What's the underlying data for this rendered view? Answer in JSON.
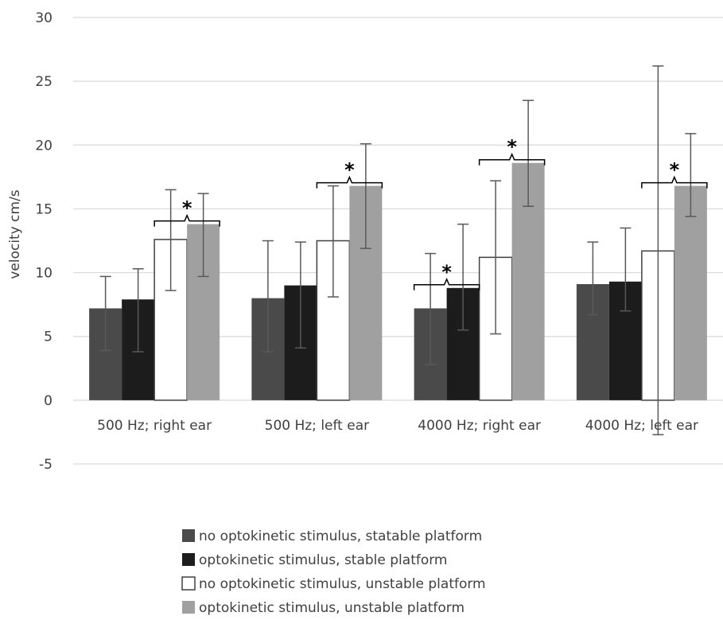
{
  "chart_data": {
    "type": "bar",
    "title": "",
    "xlabel": "",
    "ylabel": "velocity cm/s",
    "ylim": [
      -5,
      30
    ],
    "yticks": [
      -5,
      0,
      5,
      10,
      15,
      20,
      25,
      30
    ],
    "grid": true,
    "legend_position": "bottom",
    "categories": [
      "500 Hz; right ear",
      "500 Hz; left ear",
      "4000 Hz; right ear",
      "4000 Hz; left ear"
    ],
    "series": [
      {
        "name": "no optokinetic stimulus, statable platform",
        "color": "#4a4a4a",
        "values": [
          7.2,
          8.0,
          7.2,
          9.1
        ],
        "error_low": [
          3.9,
          3.8,
          2.8,
          6.7
        ],
        "error_high": [
          9.7,
          12.5,
          11.5,
          12.4
        ]
      },
      {
        "name": "optokinetic stimulus, stable platform",
        "color": "#1c1c1c",
        "values": [
          7.9,
          9.0,
          8.8,
          9.3
        ],
        "error_low": [
          3.8,
          4.1,
          5.5,
          7.0
        ],
        "error_high": [
          10.3,
          12.4,
          13.8,
          13.5
        ]
      },
      {
        "name": "no optokinetic stimulus, unstable platform",
        "color": "#ffffff",
        "values": [
          12.6,
          12.5,
          11.2,
          11.7
        ],
        "error_low": [
          8.6,
          8.1,
          5.2,
          -2.7
        ],
        "error_high": [
          16.5,
          16.8,
          17.2,
          26.2
        ]
      },
      {
        "name": "optokinetic stimulus, unstable platform",
        "color": "#a0a0a0",
        "values": [
          13.8,
          16.8,
          18.6,
          16.8
        ],
        "error_low": [
          9.7,
          11.9,
          15.2,
          14.4
        ],
        "error_high": [
          16.2,
          20.1,
          23.5,
          20.9
        ]
      }
    ],
    "annotations": [
      {
        "category": 0,
        "from_series": 2,
        "to_series": 3,
        "label": "*"
      },
      {
        "category": 1,
        "from_series": 2,
        "to_series": 3,
        "label": "*"
      },
      {
        "category": 2,
        "from_series": 0,
        "to_series": 1,
        "label": "*"
      },
      {
        "category": 2,
        "from_series": 2,
        "to_series": 3,
        "label": "*"
      },
      {
        "category": 3,
        "from_series": 2,
        "to_series": 3,
        "label": "*"
      }
    ]
  }
}
